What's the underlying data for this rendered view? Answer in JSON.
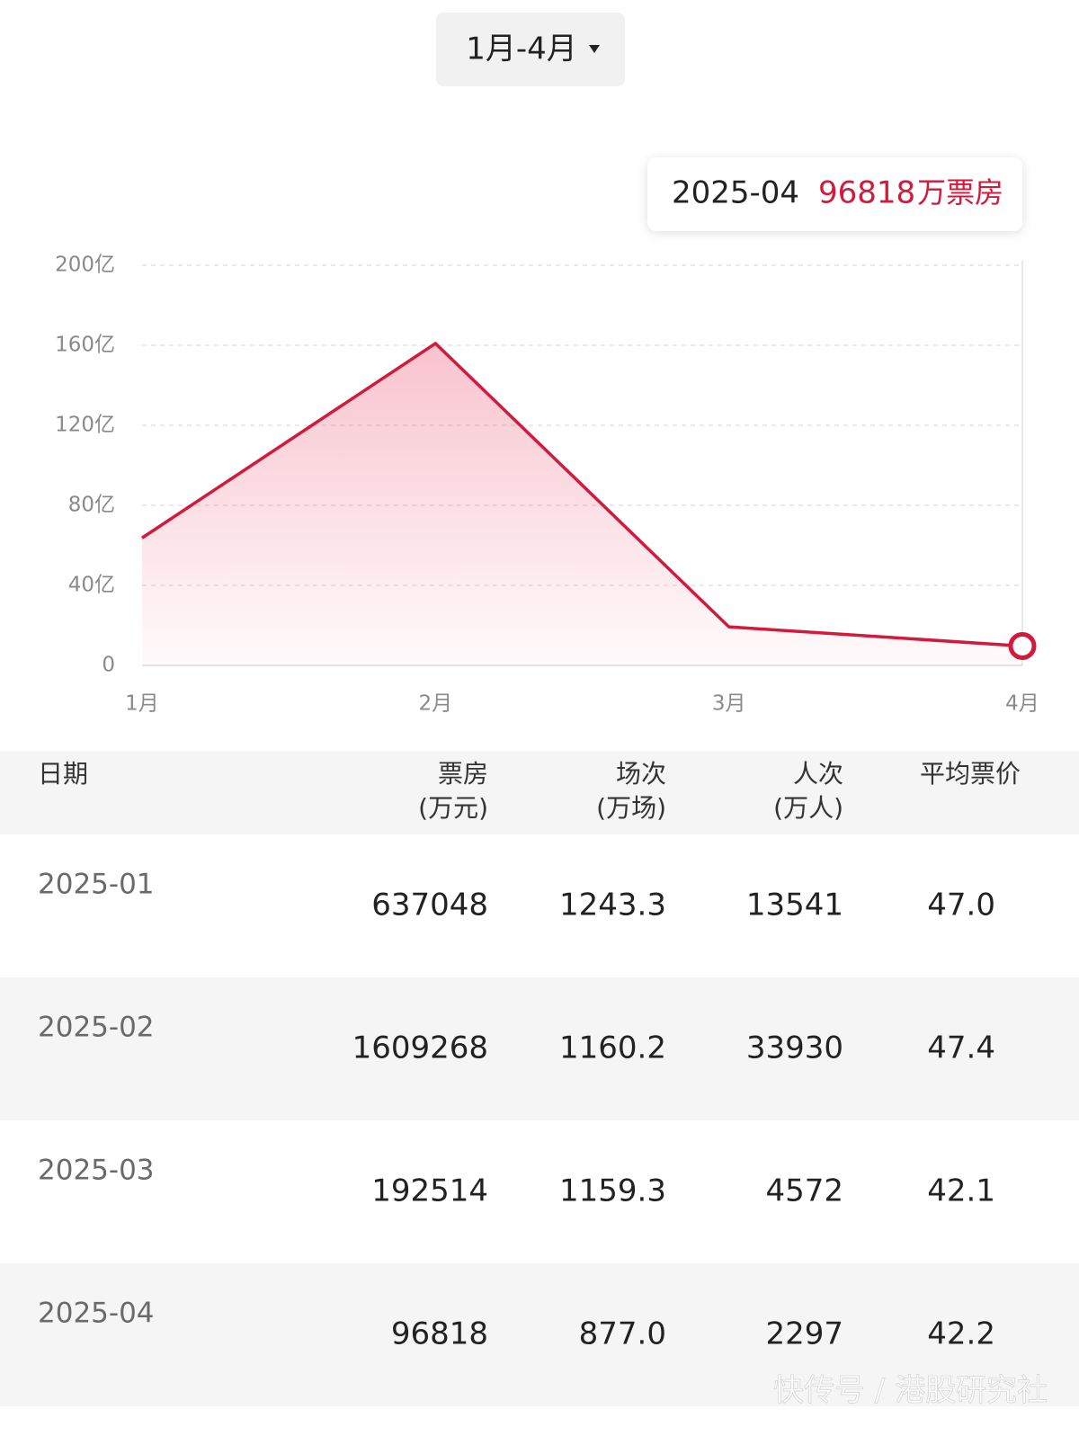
{
  "selector": {
    "label": "1月-4月"
  },
  "tooltip": {
    "unit": "万票房"
  },
  "chart_data": {
    "type": "line",
    "categories": [
      "1月",
      "2月",
      "3月",
      "4月"
    ],
    "series": [
      {
        "name": "票房",
        "color": "#d21a3d",
        "values": [
          63.7048,
          160.9268,
          19.2514,
          9.6818
        ]
      }
    ],
    "ylim": [
      0,
      200
    ],
    "yticks": [
      0,
      {
        "value": 40,
        "label": "40亿"
      },
      {
        "value": 80,
        "label": "80亿"
      },
      {
        "value": 120,
        "label": "120亿"
      },
      {
        "value": 160,
        "label": "160亿"
      },
      {
        "value": 200,
        "label": "200亿"
      }
    ],
    "grid": true
  },
  "table": {
    "columns": [
      {
        "label": "日期"
      },
      {
        "label": "票房",
        "unit": "(万元)"
      },
      {
        "label": "场次",
        "unit": "(万场)"
      },
      {
        "label": "人次",
        "unit": "(万人)"
      },
      {
        "label": "平均票价"
      }
    ],
    "rows": [
      [
        "2025-01",
        "637048",
        "1243.3",
        "13541",
        "47.0"
      ],
      [
        "2025-02",
        "1609268",
        "1160.2",
        "33930",
        "47.4"
      ],
      [
        "2025-03",
        "192514",
        "1159.3",
        "4572",
        "42.1"
      ],
      [
        "2025-04",
        "96818",
        "877.0",
        "2297",
        "42.2"
      ]
    ]
  },
  "watermark": "快传号 / 港股研究社"
}
